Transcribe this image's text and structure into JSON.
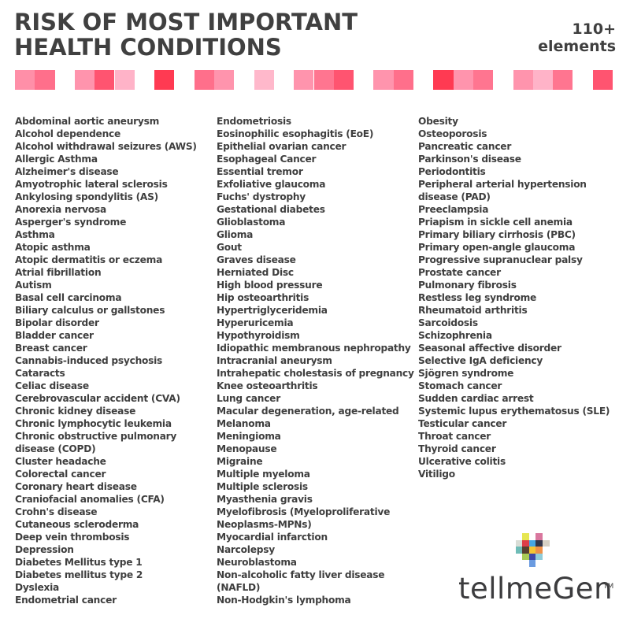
{
  "header": {
    "title_line1": "RISK OF MOST IMPORTANT",
    "title_line2": "HEALTH CONDITIONS",
    "count_value": "110+",
    "count_label": "elements"
  },
  "strip": {
    "squares": [
      {
        "slot": 0,
        "color": "#ff8fa8"
      },
      {
        "slot": 1,
        "color": "#ff6f8b"
      },
      {
        "slot": 3,
        "color": "#ff94ad"
      },
      {
        "slot": 4,
        "color": "#ff5470"
      },
      {
        "slot": 5,
        "color": "#ffb3c8"
      },
      {
        "slot": 7,
        "color": "#ff3a52"
      },
      {
        "slot": 9,
        "color": "#ff6f8b"
      },
      {
        "slot": 10,
        "color": "#ff94ad"
      },
      {
        "slot": 12,
        "color": "#ffb8cb"
      },
      {
        "slot": 14,
        "color": "#ff94ad"
      },
      {
        "slot": 15,
        "color": "#ff7590"
      },
      {
        "slot": 16,
        "color": "#ff5470"
      },
      {
        "slot": 18,
        "color": "#ff94ad"
      },
      {
        "slot": 19,
        "color": "#ff6f8b"
      },
      {
        "slot": 21,
        "color": "#ff3a52"
      },
      {
        "slot": 22,
        "color": "#ff94ad"
      },
      {
        "slot": 23,
        "color": "#ff7590"
      },
      {
        "slot": 25,
        "color": "#ff94ad"
      },
      {
        "slot": 26,
        "color": "#ffb3c8"
      },
      {
        "slot": 27,
        "color": "#ff7590"
      },
      {
        "slot": 29,
        "color": "#ff5470"
      }
    ]
  },
  "columns": [
    {
      "items": [
        "Abdominal aortic aneurysm",
        "Alcohol dependence",
        "Alcohol withdrawal seizures (AWS)",
        "Allergic Asthma",
        "Alzheimer's disease",
        "Amyotrophic lateral sclerosis",
        "Ankylosing spondylitis (AS)",
        "Anorexia nervosa",
        "Asperger's syndrome",
        "Asthma",
        "Atopic asthma",
        "Atopic dermatitis or eczema",
        "Atrial fibrillation",
        "Autism",
        "Basal cell carcinoma",
        "Biliary calculus or gallstones",
        "Bipolar disorder",
        "Bladder cancer",
        "Breast cancer",
        "Cannabis-induced psychosis",
        "Cataracts",
        "Celiac disease",
        "Cerebrovascular accident (CVA)",
        "Chronic kidney disease",
        "Chronic lymphocytic leukemia",
        "Chronic obstructive pulmonary",
        "disease (COPD)",
        "Cluster headache",
        "Colorectal cancer",
        "Coronary heart disease",
        "Craniofacial anomalies (CFA)",
        "Crohn's disease",
        "Cutaneous scleroderma",
        "Deep vein thrombosis",
        "Depression",
        "Diabetes Mellitus type 1",
        "Diabetes mellitus type 2",
        "Dyslexia",
        "Endometrial cancer"
      ]
    },
    {
      "items": [
        "Endometriosis",
        "Eosinophilic esophagitis (EoE)",
        "Epithelial ovarian cancer",
        "Esophageal Cancer",
        "Essential tremor",
        "Exfoliative glaucoma",
        "Fuchs' dystrophy",
        "Gestational diabetes",
        "Glioblastoma",
        "Glioma",
        "Gout",
        "Graves disease",
        "Herniated Disc",
        "High blood pressure",
        "Hip osteoarthritis",
        "Hypertriglyceridemia",
        "Hyperuricemia",
        "Hypothyroidism",
        "Idiopathic membranous nephropathy",
        "Intracranial aneurysm",
        "Intrahepatic cholestasis of pregnancy",
        "Knee osteoarthritis",
        "Lung cancer",
        "Macular degeneration, age-related",
        "Melanoma",
        "Meningioma",
        "Menopause",
        "Migraine",
        "Multiple myeloma",
        "Multiple sclerosis",
        "Myasthenia gravis",
        "Myelofibrosis (Myeloproliferative",
        "Neoplasms-MPNs)",
        "Myocardial infarction",
        "Narcolepsy",
        "Neuroblastoma",
        "Non-alcoholic fatty liver disease",
        "(NAFLD)",
        "Non-Hodgkin's lymphoma"
      ]
    },
    {
      "items": [
        "Obesity",
        "Osteoporosis",
        "Pancreatic cancer",
        "Parkinson's disease",
        "Periodontitis",
        "Peripheral arterial hypertension",
        "disease (PAD)",
        "Preeclampsia",
        "Priapism in sickle cell anemia",
        "Primary biliary cirrhosis (PBC)",
        "Primary open-angle glaucoma",
        "Progressive supranuclear palsy",
        "Prostate cancer",
        "Pulmonary fibrosis",
        "Restless leg syndrome",
        "Rheumatoid arthritis",
        "Sarcoidosis",
        "Schizophrenia",
        "Seasonal affective disorder",
        "Selective IgA deficiency",
        "Sjögren syndrome",
        "Stomach cancer",
        "Sudden cardiac arrest",
        "Systemic lupus erythematosus (SLE)",
        "Testicular cancer",
        "Throat cancer",
        "Thyroid cancer",
        "Ulcerative colitis",
        "Vitiligo"
      ]
    }
  ],
  "logo": {
    "brand_name": "tellmeGen",
    "trademark": "TM",
    "mosaic": [
      {
        "col": 2,
        "row": 0,
        "color": "#e6e651"
      },
      {
        "col": 4,
        "row": 0,
        "color": "#d9779e"
      },
      {
        "col": 1,
        "row": 1,
        "color": "#d9ddd6"
      },
      {
        "col": 2,
        "row": 1,
        "color": "#de3d48"
      },
      {
        "col": 3,
        "row": 1,
        "color": "#45a6e4"
      },
      {
        "col": 4,
        "row": 1,
        "color": "#33364a"
      },
      {
        "col": 5,
        "row": 1,
        "color": "#d6d0c4"
      },
      {
        "col": 1,
        "row": 2,
        "color": "#6fbcb7"
      },
      {
        "col": 2,
        "row": 2,
        "color": "#56402f"
      },
      {
        "col": 3,
        "row": 2,
        "color": "#f5c534"
      },
      {
        "col": 4,
        "row": 2,
        "color": "#ef9148"
      },
      {
        "col": 2,
        "row": 3,
        "color": "#a8cc55"
      },
      {
        "col": 3,
        "row": 3,
        "color": "#3e46a8"
      },
      {
        "col": 4,
        "row": 3,
        "color": "#8fccd9"
      },
      {
        "col": 3,
        "row": 4,
        "color": "#6b9be0"
      }
    ]
  }
}
